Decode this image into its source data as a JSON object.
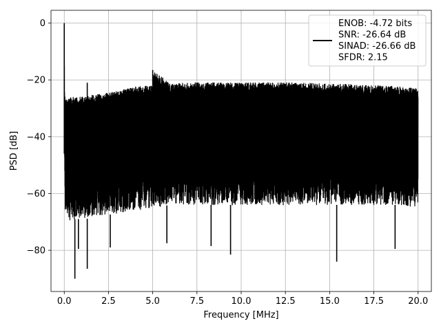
{
  "chart_data": {
    "type": "line",
    "title": "",
    "xlabel": "Frequency [MHz]",
    "ylabel": "PSD [dB]",
    "xlim": [
      -0.75,
      20.75
    ],
    "ylim": [
      -94.5,
      4.5
    ],
    "x_ticks": [
      0.0,
      2.5,
      5.0,
      7.5,
      10.0,
      12.5,
      15.0,
      17.5,
      20.0
    ],
    "x_tick_labels": [
      "0.0",
      "2.5",
      "5.0",
      "7.5",
      "10.0",
      "12.5",
      "15.0",
      "17.5",
      "20.0"
    ],
    "y_ticks": [
      0,
      -20,
      -40,
      -60,
      -80
    ],
    "y_tick_labels": [
      "0",
      "−20",
      "−40",
      "−60",
      "−80"
    ],
    "grid": true,
    "legend_position": "top-right",
    "series": [
      {
        "name": "",
        "color": "#000000",
        "description_points": {
          "x": [
            0.0,
            0.02,
            0.05,
            0.3,
            0.6,
            1.2,
            2.0,
            3.0,
            4.0,
            5.0,
            5.01,
            6.0,
            7.0,
            8.0,
            9.0,
            10.0,
            11.0,
            12.0,
            13.0,
            14.0,
            15.0,
            16.0,
            17.0,
            18.0,
            19.0,
            20.0
          ],
          "upper_envelope": [
            0.0,
            -24.0,
            -26.5,
            -26.3,
            -26.0,
            -25.8,
            -25.0,
            -24.0,
            -22.5,
            -22.0,
            -16.5,
            -21.5,
            -21.0,
            -21.0,
            -21.0,
            -21.0,
            -21.0,
            -21.0,
            -21.0,
            -21.0,
            -21.5,
            -21.5,
            -22.0,
            -22.0,
            -22.5,
            -23.0
          ],
          "lower_envelope": [
            -46.0,
            -55.0,
            -66.0,
            -70.0,
            -69.0,
            -69.0,
            -68.0,
            -67.0,
            -66.0,
            -65.0,
            -65.0,
            -64.0,
            -64.0,
            -64.0,
            -64.0,
            -64.0,
            -64.0,
            -64.0,
            -64.0,
            -64.0,
            -64.0,
            -64.0,
            -64.0,
            -64.0,
            -64.0,
            -65.0
          ]
        },
        "spikes": [
          {
            "x": 0.0,
            "y": 0.0
          },
          {
            "x": 0.6,
            "y": -90.0
          },
          {
            "x": 0.8,
            "y": -79.5
          },
          {
            "x": 1.3,
            "y": -86.5
          },
          {
            "x": 1.3,
            "y": -21.0
          },
          {
            "x": 2.6,
            "y": -79.0
          },
          {
            "x": 5.0,
            "y": -16.5
          },
          {
            "x": 5.8,
            "y": -77.5
          },
          {
            "x": 8.3,
            "y": -78.5
          },
          {
            "x": 9.4,
            "y": -81.5
          },
          {
            "x": 15.4,
            "y": -84.0
          },
          {
            "x": 18.7,
            "y": -79.5
          }
        ]
      }
    ],
    "legend": {
      "entries": [
        "ENOB: -4.72 bits",
        "SNR: -26.64 dB",
        "SINAD: -26.66 dB",
        "SFDR: 2.15"
      ]
    }
  }
}
